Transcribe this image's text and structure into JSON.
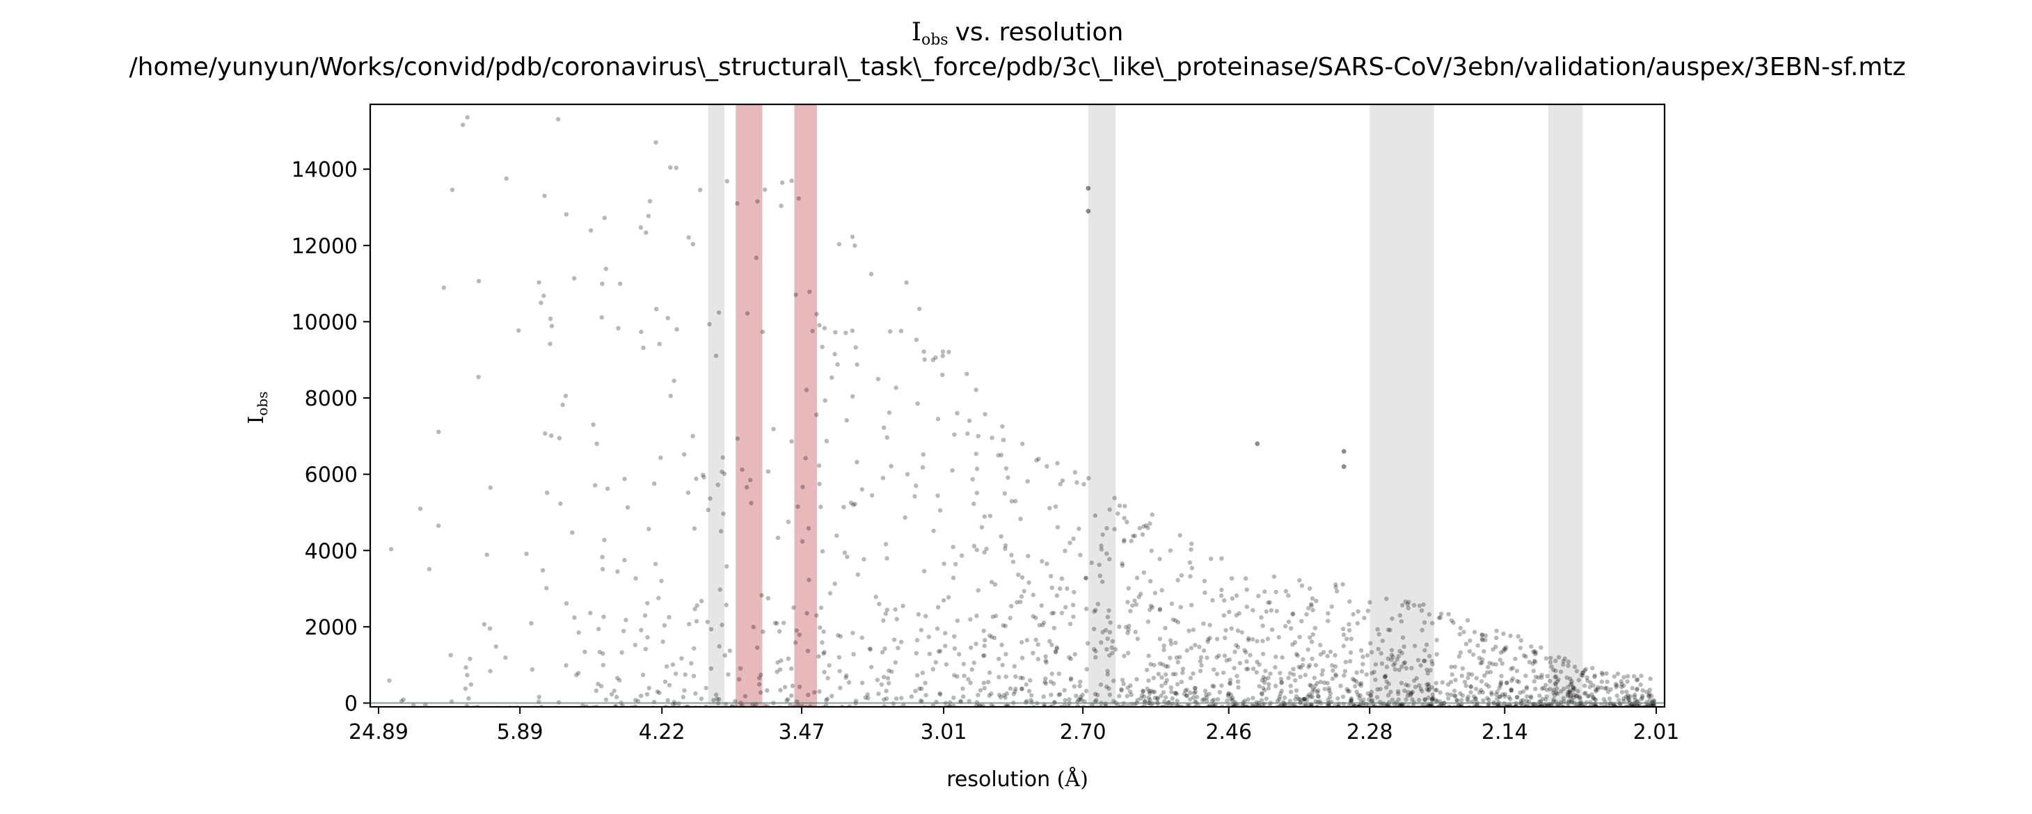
{
  "chart_data": {
    "type": "scatter",
    "title_main": "vs. resolution",
    "title_symbol": "I",
    "title_symbol_sub": "obs",
    "title_path": "/home/yunyun/Works/convid/pdb/coronavirus\\_structural\\_task\\_force/pdb/3c\\_like\\_proteinase/SARS-CoV/3ebn/validation/auspex/3EBN-sf.mtz",
    "xlabel": "resolution",
    "xlabel_unit": "(Å)",
    "ylabel_symbol": "I",
    "ylabel_sub": "obs",
    "x_scale": "1/d^2",
    "x_tick_labels": [
      "24.89",
      "5.89",
      "4.22",
      "3.47",
      "3.01",
      "2.70",
      "2.46",
      "2.28",
      "2.14",
      "2.01"
    ],
    "ylim": [
      -100,
      15700
    ],
    "y_ticks": [
      0,
      2000,
      4000,
      6000,
      8000,
      10000,
      12000,
      14000
    ],
    "grid": false,
    "ice_ring_bands": [
      {
        "from": 3.92,
        "to": 3.83,
        "type": "grey"
      },
      {
        "from": 3.77,
        "to": 3.64,
        "type": "red"
      },
      {
        "from": 3.5,
        "to": 3.41,
        "type": "red"
      },
      {
        "from": 2.69,
        "to": 2.64,
        "type": "grey"
      },
      {
        "from": 2.28,
        "to": 2.21,
        "type": "grey"
      },
      {
        "from": 2.1,
        "to": 2.07,
        "type": "grey"
      }
    ],
    "point_envelope": [
      {
        "resolution": 24.89,
        "upper_intensity": 8000
      },
      {
        "resolution": 8.0,
        "upper_intensity": 15500
      },
      {
        "resolution": 5.89,
        "upper_intensity": 15500
      },
      {
        "resolution": 4.22,
        "upper_intensity": 15700
      },
      {
        "resolution": 3.47,
        "upper_intensity": 14200
      },
      {
        "resolution": 3.2,
        "upper_intensity": 12000
      },
      {
        "resolution": 3.01,
        "upper_intensity": 10000
      },
      {
        "resolution": 2.85,
        "upper_intensity": 7000
      },
      {
        "resolution": 2.7,
        "upper_intensity": 6000
      },
      {
        "resolution": 2.55,
        "upper_intensity": 4700
      },
      {
        "resolution": 2.46,
        "upper_intensity": 3800
      },
      {
        "resolution": 2.35,
        "upper_intensity": 3200
      },
      {
        "resolution": 2.28,
        "upper_intensity": 3100
      },
      {
        "resolution": 2.2,
        "upper_intensity": 2400
      },
      {
        "resolution": 2.14,
        "upper_intensity": 1900
      },
      {
        "resolution": 2.06,
        "upper_intensity": 900
      },
      {
        "resolution": 2.01,
        "upper_intensity": 700
      }
    ],
    "highlighted_points": [
      {
        "resolution": 2.69,
        "intensity": 13500
      },
      {
        "resolution": 2.69,
        "intensity": 12900
      },
      {
        "resolution": 2.42,
        "intensity": 6800
      },
      {
        "resolution": 2.31,
        "intensity": 6600
      },
      {
        "resolution": 2.31,
        "intensity": 6200
      }
    ],
    "colors": {
      "points": "#000000",
      "grey_band": "#e6e6e6",
      "red_band": "#e8b9ba",
      "baseline": "#5a7a6a"
    }
  }
}
